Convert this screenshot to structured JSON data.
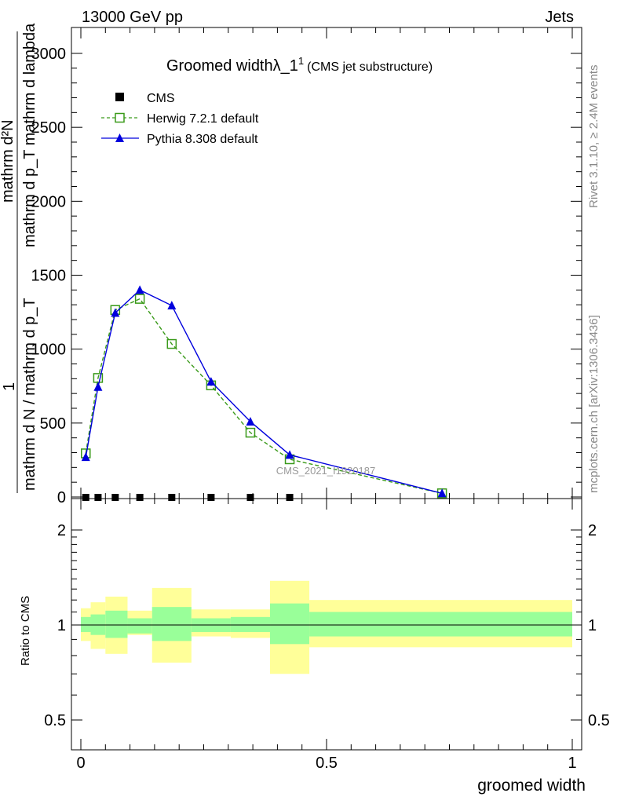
{
  "header": {
    "energy": "13000 GeV pp",
    "category": "Jets",
    "side_rivet": "Rivet 3.1.10, ≥ 2.4M events",
    "side_mcplots": "mcplots.cern.ch [arXiv:1306.3436]"
  },
  "chart_data": [
    {
      "type": "line",
      "title_main": "Groomed widthλ_1",
      "title_sup": "1",
      "title_sub": "(CMS jet substructure)",
      "ylabel_numerator": "mathrm d²N",
      "ylabel_denominator": "mathrm d p_T mathrm d lambda",
      "ylabel_one": "1",
      "ylabel_bottom": "mathrm d N / mathrm d p_T",
      "watermark": "CMS_2021_I1920187",
      "xlim": [
        0,
        1
      ],
      "ylim": [
        0,
        3000
      ],
      "y_ticks": [
        0,
        500,
        1000,
        1500,
        2000,
        2500,
        3000
      ],
      "y_tick_labels": [
        "0",
        "500",
        "1000",
        "1500",
        "2000",
        "2500",
        "3000"
      ],
      "legend_position": "top-left",
      "series": [
        {
          "name": "CMS",
          "color": "#000000",
          "marker": "square",
          "x": [
            0.01,
            0.035,
            0.07,
            0.12,
            0.185,
            0.265,
            0.345,
            0.425
          ],
          "y": [
            5,
            5,
            5,
            5,
            5,
            5,
            5,
            5
          ]
        },
        {
          "name": "Herwig 7.2.1 default",
          "color": "#3a9a1a",
          "marker": "open-square",
          "x": [
            0.01,
            0.035,
            0.07,
            0.12,
            0.185,
            0.265,
            0.345,
            0.425,
            0.735
          ],
          "y": [
            295,
            805,
            1265,
            1340,
            1035,
            755,
            435,
            255,
            25
          ]
        },
        {
          "name": "Pythia 8.308 default",
          "color": "#0000dd",
          "marker": "triangle",
          "x": [
            0.01,
            0.035,
            0.07,
            0.12,
            0.185,
            0.265,
            0.345,
            0.425,
            0.735
          ],
          "y": [
            270,
            745,
            1245,
            1400,
            1295,
            780,
            510,
            285,
            25
          ]
        }
      ]
    },
    {
      "type": "area",
      "ylabel": "Ratio to CMS",
      "xlabel": "groomed width",
      "x_tick_labels": [
        "0",
        "0.5",
        "1"
      ],
      "x_ticks": [
        0,
        0.5,
        1
      ],
      "y_ticks": [
        0.5,
        1,
        2
      ],
      "y_tick_labels": [
        "0.5",
        "1",
        "2"
      ],
      "ylim": [
        0.35,
        2.3
      ],
      "log_scale_y": true,
      "reference_line": 1,
      "band_colors": {
        "inner": "#99ff99",
        "outer": "#ffff99"
      },
      "bins": [
        {
          "x0": 0.0,
          "x1": 0.02,
          "inner": [
            0.95,
            1.06
          ],
          "outer": [
            0.89,
            1.13
          ]
        },
        {
          "x0": 0.02,
          "x1": 0.05,
          "inner": [
            0.93,
            1.08
          ],
          "outer": [
            0.84,
            1.18
          ]
        },
        {
          "x0": 0.05,
          "x1": 0.095,
          "inner": [
            0.91,
            1.11
          ],
          "outer": [
            0.81,
            1.23
          ]
        },
        {
          "x0": 0.095,
          "x1": 0.145,
          "inner": [
            0.94,
            1.05
          ],
          "outer": [
            0.93,
            1.11
          ]
        },
        {
          "x0": 0.145,
          "x1": 0.225,
          "inner": [
            0.89,
            1.14
          ],
          "outer": [
            0.76,
            1.31
          ]
        },
        {
          "x0": 0.225,
          "x1": 0.305,
          "inner": [
            0.95,
            1.05
          ],
          "outer": [
            0.92,
            1.12
          ]
        },
        {
          "x0": 0.305,
          "x1": 0.385,
          "inner": [
            0.95,
            1.06
          ],
          "outer": [
            0.91,
            1.12
          ]
        },
        {
          "x0": 0.385,
          "x1": 0.465,
          "inner": [
            0.87,
            1.17
          ],
          "outer": [
            0.7,
            1.38
          ]
        },
        {
          "x0": 0.465,
          "x1": 1.0,
          "inner": [
            0.92,
            1.1
          ],
          "outer": [
            0.85,
            1.2
          ]
        }
      ]
    }
  ]
}
